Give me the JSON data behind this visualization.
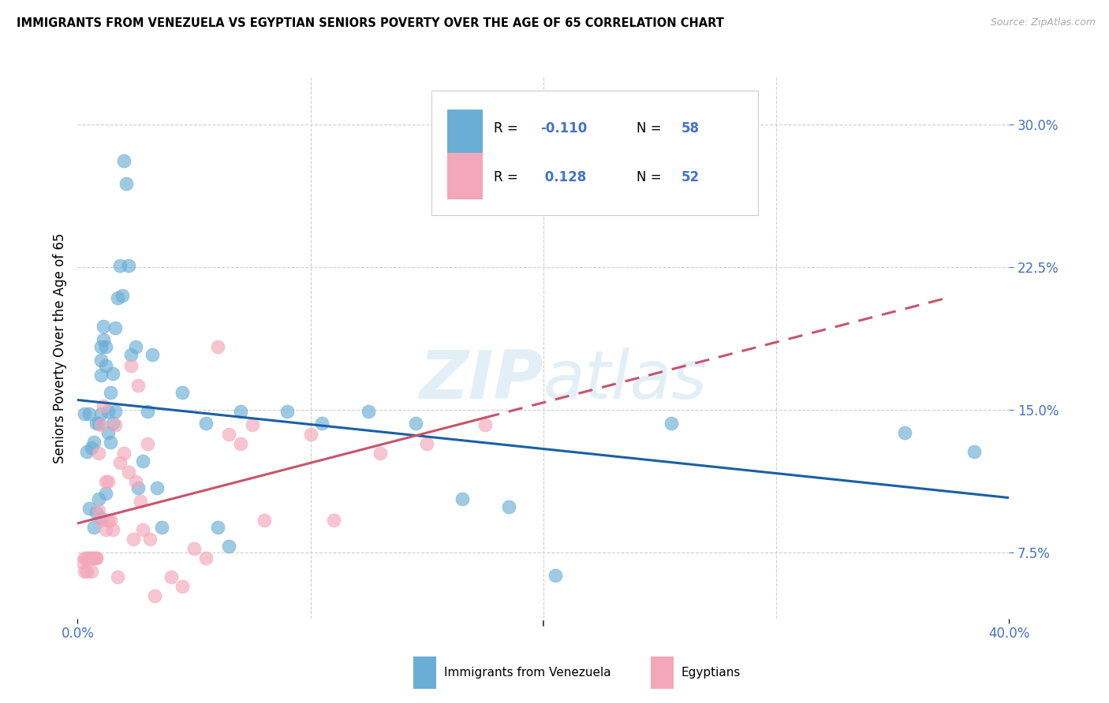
{
  "title": "IMMIGRANTS FROM VENEZUELA VS EGYPTIAN SENIORS POVERTY OVER THE AGE OF 65 CORRELATION CHART",
  "source": "Source: ZipAtlas.com",
  "ylabel": "Seniors Poverty Over the Age of 65",
  "yticks": [
    0.075,
    0.15,
    0.225,
    0.3
  ],
  "ytick_labels": [
    "7.5%",
    "15.0%",
    "22.5%",
    "30.0%"
  ],
  "xmin": 0.0,
  "xmax": 0.4,
  "ymin": 0.04,
  "ymax": 0.325,
  "legend_label1": "Immigrants from Venezuela",
  "legend_label2": "Egyptians",
  "blue_color": "#6aaed6",
  "pink_color": "#f4a7b9",
  "blue_line_color": "#1a5fa6",
  "pink_line_color": "#c8546a",
  "tick_color": "#4472c4",
  "blue_x": [
    0.003,
    0.004,
    0.005,
    0.005,
    0.006,
    0.007,
    0.007,
    0.008,
    0.008,
    0.009,
    0.009,
    0.01,
    0.01,
    0.01,
    0.01,
    0.01,
    0.011,
    0.011,
    0.012,
    0.012,
    0.012,
    0.013,
    0.013,
    0.014,
    0.014,
    0.015,
    0.015,
    0.016,
    0.016,
    0.017,
    0.018,
    0.019,
    0.02,
    0.021,
    0.022,
    0.023,
    0.025,
    0.026,
    0.028,
    0.03,
    0.032,
    0.034,
    0.036,
    0.045,
    0.055,
    0.06,
    0.065,
    0.07,
    0.09,
    0.105,
    0.125,
    0.145,
    0.165,
    0.185,
    0.205,
    0.255,
    0.355,
    0.385
  ],
  "blue_y": [
    0.148,
    0.128,
    0.098,
    0.148,
    0.13,
    0.088,
    0.133,
    0.096,
    0.143,
    0.103,
    0.143,
    0.183,
    0.176,
    0.168,
    0.148,
    0.093,
    0.194,
    0.187,
    0.183,
    0.173,
    0.106,
    0.149,
    0.138,
    0.159,
    0.133,
    0.169,
    0.143,
    0.193,
    0.149,
    0.209,
    0.226,
    0.21,
    0.281,
    0.269,
    0.226,
    0.179,
    0.183,
    0.109,
    0.123,
    0.149,
    0.179,
    0.109,
    0.088,
    0.159,
    0.143,
    0.088,
    0.078,
    0.149,
    0.149,
    0.143,
    0.149,
    0.143,
    0.103,
    0.099,
    0.063,
    0.143,
    0.138,
    0.128
  ],
  "pink_x": [
    0.002,
    0.003,
    0.003,
    0.004,
    0.004,
    0.005,
    0.005,
    0.006,
    0.006,
    0.007,
    0.007,
    0.008,
    0.008,
    0.009,
    0.009,
    0.01,
    0.01,
    0.011,
    0.012,
    0.012,
    0.013,
    0.013,
    0.014,
    0.015,
    0.016,
    0.017,
    0.018,
    0.02,
    0.022,
    0.023,
    0.024,
    0.025,
    0.026,
    0.027,
    0.028,
    0.03,
    0.031,
    0.033,
    0.04,
    0.045,
    0.05,
    0.055,
    0.06,
    0.065,
    0.07,
    0.075,
    0.08,
    0.1,
    0.11,
    0.13,
    0.15,
    0.175
  ],
  "pink_y": [
    0.07,
    0.072,
    0.065,
    0.072,
    0.065,
    0.072,
    0.072,
    0.072,
    0.065,
    0.072,
    0.072,
    0.072,
    0.072,
    0.127,
    0.097,
    0.142,
    0.092,
    0.152,
    0.112,
    0.087,
    0.112,
    0.092,
    0.092,
    0.087,
    0.142,
    0.062,
    0.122,
    0.127,
    0.117,
    0.173,
    0.082,
    0.112,
    0.163,
    0.102,
    0.087,
    0.132,
    0.082,
    0.052,
    0.062,
    0.057,
    0.077,
    0.072,
    0.183,
    0.137,
    0.132,
    0.142,
    0.092,
    0.137,
    0.092,
    0.127,
    0.132,
    0.142
  ],
  "watermark": "ZIPatlas",
  "background_color": "#ffffff",
  "grid_color": "#d0d0d0"
}
